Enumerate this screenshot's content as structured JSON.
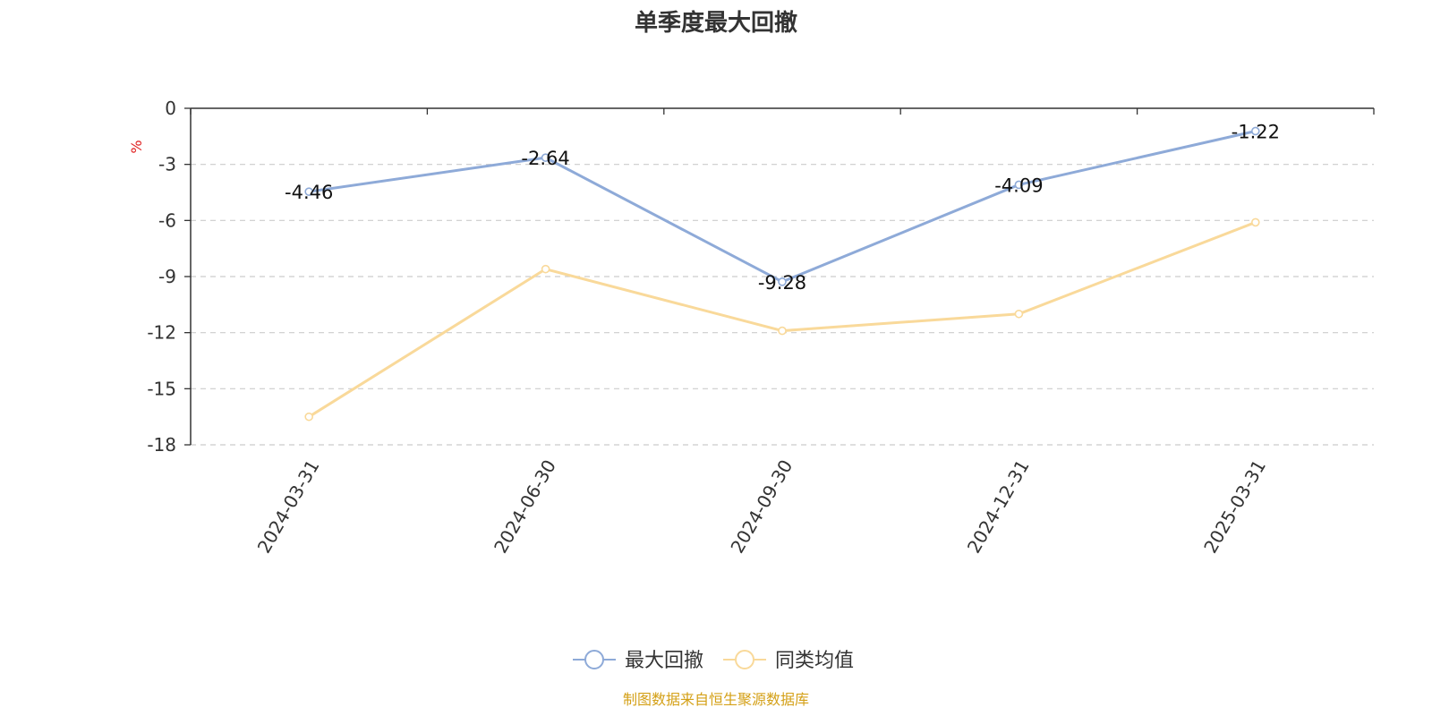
{
  "chart_data": {
    "type": "line",
    "title": "单季度最大回撤",
    "ylabel": "%",
    "categories": [
      "2024-03-31",
      "2024-06-30",
      "2024-09-30",
      "2024-12-31",
      "2025-03-31"
    ],
    "ylim": [
      -18,
      0
    ],
    "yticks": [
      0,
      -3,
      -6,
      -9,
      -12,
      -15,
      -18
    ],
    "grid": true,
    "legend_position": "bottom-center",
    "series": [
      {
        "name": "最大回撤",
        "values": [
          -4.46,
          -2.64,
          -9.28,
          -4.09,
          -1.22
        ],
        "show_labels": true,
        "color": "#8eaad8"
      },
      {
        "name": "同类均值",
        "values": [
          -16.5,
          -8.6,
          -11.9,
          -11.0,
          -6.1
        ],
        "show_labels": false,
        "color": "#f9d99a"
      }
    ],
    "source": "制图数据来自恒生聚源数据库"
  },
  "colors": {
    "axis": "#333333",
    "grid": "#cccccc",
    "unit": "#e02020",
    "source": "#d4a017"
  }
}
